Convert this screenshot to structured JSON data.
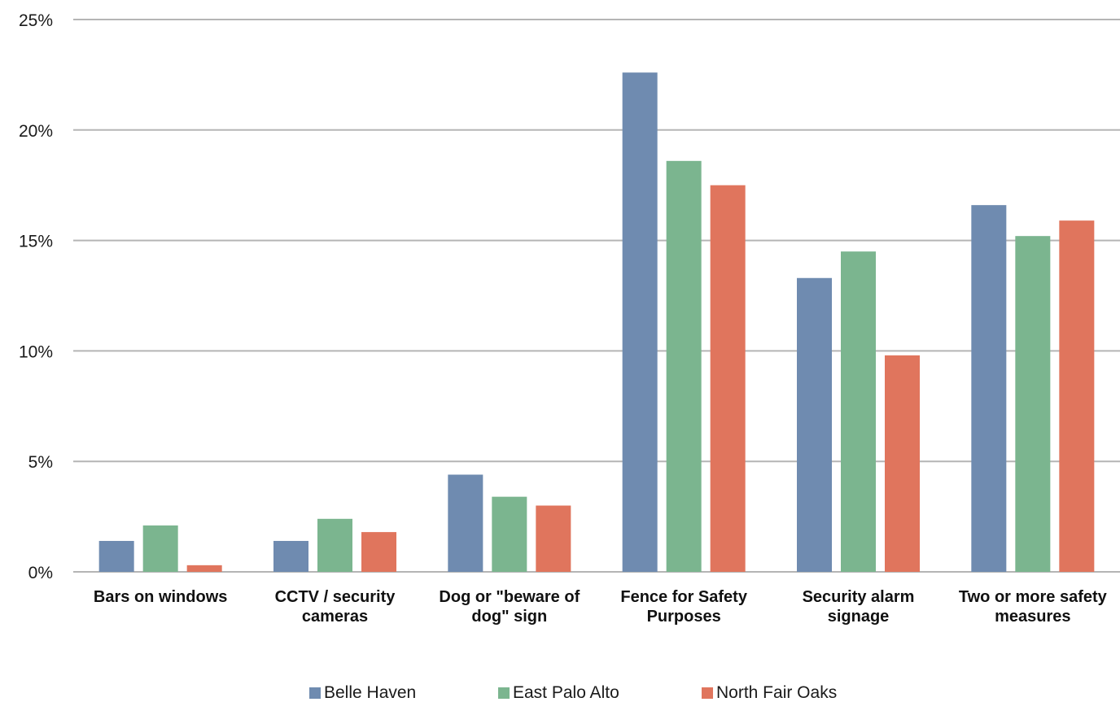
{
  "chart_data": {
    "type": "bar",
    "title": "",
    "xlabel": "",
    "ylabel": "",
    "ylim": [
      0,
      25
    ],
    "y_ticks": [
      "0%",
      "5%",
      "10%",
      "15%",
      "20%",
      "25%"
    ],
    "y_tick_values": [
      0,
      5,
      10,
      15,
      20,
      25
    ],
    "grid": true,
    "legend_position": "bottom",
    "categories": [
      [
        "Bars on windows"
      ],
      [
        "CCTV / security",
        "cameras"
      ],
      [
        "Dog or \"beware of",
        "dog\" sign"
      ],
      [
        "Fence for Safety",
        "Purposes"
      ],
      [
        "Security alarm",
        "signage"
      ],
      [
        "Two or more safety",
        "measures"
      ]
    ],
    "series": [
      {
        "name": "Belle Haven",
        "color": "#6f8bb0",
        "values": [
          1.4,
          1.4,
          4.4,
          22.6,
          13.3,
          16.6
        ]
      },
      {
        "name": "East Palo Alto",
        "color": "#7bb58f",
        "values": [
          2.1,
          2.4,
          3.4,
          18.6,
          14.5,
          15.2
        ]
      },
      {
        "name": "North Fair Oaks",
        "color": "#e0755d",
        "values": [
          0.3,
          1.8,
          3.0,
          17.5,
          9.8,
          15.9
        ]
      }
    ]
  }
}
